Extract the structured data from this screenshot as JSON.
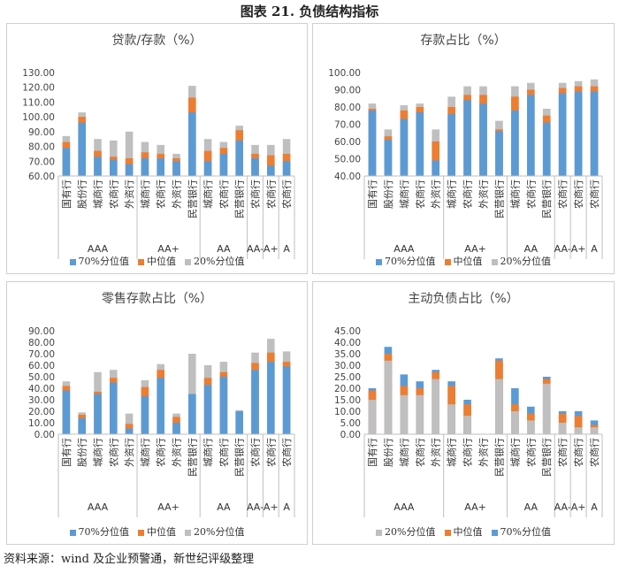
{
  "figure_title": "图表 21.   负债结构指标",
  "source": "资料来源：wind 及企业预警通，新世纪评级整理",
  "colors": {
    "p70": "#5b9bd5",
    "median": "#ed7d31",
    "p20": "#bfbfbf"
  },
  "chart_data": [
    {
      "type": "bar",
      "title": "贷款/存款（%）",
      "categories": [
        "国有行",
        "股份行",
        "城商行",
        "农商行",
        "外资行",
        "城商行",
        "农商行",
        "外资行",
        "民营银行",
        "城商行",
        "农商行",
        "民营银行",
        "农商行",
        "农商行",
        "农商行"
      ],
      "groups": [
        {
          "label": "AAA",
          "span": 5
        },
        {
          "label": "AA+",
          "span": 4
        },
        {
          "label": "AA",
          "span": 3
        },
        {
          "label": "AA-",
          "span": 1
        },
        {
          "label": "A+",
          "span": 1
        },
        {
          "label": "A",
          "span": 1
        }
      ],
      "ylim": [
        60,
        130
      ],
      "yticks": [
        "60.00",
        "70.00",
        "80.00",
        "90.00",
        "100.00",
        "110.00",
        "120.00",
        "130.00"
      ],
      "stack_order": [
        "70%分位值",
        "中位值",
        "20%分位值"
      ],
      "series": [
        {
          "name": "70%分位值",
          "values": [
            79,
            96,
            73,
            71,
            68,
            72,
            72,
            70,
            103,
            70,
            75,
            84,
            72,
            67,
            70
          ]
        },
        {
          "name": "中位值",
          "values": [
            83,
            100,
            77,
            73,
            72,
            76,
            75,
            72,
            113,
            77,
            79,
            91,
            75,
            74,
            75
          ]
        },
        {
          "name": "20%分位值",
          "values": [
            87,
            103,
            85,
            84,
            90,
            83,
            81,
            75,
            121,
            85,
            83,
            94,
            81,
            81,
            85
          ]
        }
      ],
      "legend": [
        "70%分位值",
        "中位值",
        "20%分位值"
      ]
    },
    {
      "type": "bar",
      "title": "存款占比（%）",
      "categories": [
        "国有行",
        "股份行",
        "城商行",
        "农商行",
        "外资行",
        "城商行",
        "农商行",
        "外资行",
        "民营银行",
        "城商行",
        "农商行",
        "民营银行",
        "农商行",
        "农商行",
        "农商行"
      ],
      "groups": [
        {
          "label": "AAA",
          "span": 5
        },
        {
          "label": "AA+",
          "span": 4
        },
        {
          "label": "AA",
          "span": 3
        },
        {
          "label": "AA-",
          "span": 1
        },
        {
          "label": "A+",
          "span": 1
        },
        {
          "label": "A",
          "span": 1
        }
      ],
      "ylim": [
        40,
        100
      ],
      "yticks": [
        "40.00",
        "50.00",
        "60.00",
        "70.00",
        "80.00",
        "90.00",
        "100.00"
      ],
      "stack_order": [
        "70%分位值",
        "中位值",
        "20%分位值"
      ],
      "series": [
        {
          "name": "70%分位值",
          "values": [
            78,
            61,
            73,
            77,
            49,
            76,
            84,
            82,
            66,
            78,
            87,
            71,
            88,
            89,
            89
          ]
        },
        {
          "name": "中位值",
          "values": [
            79,
            63,
            78,
            80,
            60,
            80,
            87,
            87,
            67,
            86,
            90,
            75,
            91,
            92,
            92
          ]
        },
        {
          "name": "20%分位值",
          "values": [
            82,
            67,
            81,
            82,
            67,
            86,
            92,
            92,
            72,
            92,
            94,
            79,
            94,
            95,
            96
          ]
        }
      ],
      "legend": [
        "70%分位值",
        "中位值",
        "20%分位值"
      ]
    },
    {
      "type": "bar",
      "title": "零售存款占比（%）",
      "categories": [
        "国有行",
        "股份行",
        "城商行",
        "农商行",
        "外资行",
        "城商行",
        "农商行",
        "外资行",
        "民营银行",
        "城商行",
        "农商行",
        "民营银行",
        "农商行",
        "农商行",
        "农商行"
      ],
      "groups": [
        {
          "label": "AAA",
          "span": 5
        },
        {
          "label": "AA+",
          "span": 4
        },
        {
          "label": "AA",
          "span": 3
        },
        {
          "label": "AA-",
          "span": 1
        },
        {
          "label": "A+",
          "span": 1
        },
        {
          "label": "A",
          "span": 1
        }
      ],
      "ylim": [
        0,
        90
      ],
      "yticks": [
        "0.00",
        "10.00",
        "20.00",
        "30.00",
        "40.00",
        "50.00",
        "60.00",
        "70.00",
        "80.00",
        "90.00"
      ],
      "stack_order": [
        "70%分位值",
        "中位值",
        "20%分位值"
      ],
      "series": [
        {
          "name": "70%分位值",
          "values": [
            38,
            14,
            35,
            45,
            5,
            33,
            49,
            10,
            35,
            43,
            50,
            20,
            56,
            63,
            59
          ]
        },
        {
          "name": "中位值",
          "values": [
            42,
            17,
            37,
            49,
            9,
            41,
            56,
            15,
            35,
            49,
            54,
            20,
            62,
            71,
            63
          ]
        },
        {
          "name": "20%分位值",
          "values": [
            46,
            19,
            54,
            56,
            18,
            47,
            61,
            18,
            70,
            60,
            63,
            21,
            71,
            83,
            72
          ]
        }
      ],
      "legend": [
        "70%分位值",
        "中位值",
        "20%分位值"
      ]
    },
    {
      "type": "bar",
      "title": "主动负债占比（%）",
      "categories": [
        "国有行",
        "股份行",
        "城商行",
        "农商行",
        "外资行",
        "城商行",
        "农商行",
        "外资行",
        "民营银行",
        "城商行",
        "农商行",
        "民营银行",
        "农商行",
        "农商行",
        "农商行"
      ],
      "groups": [
        {
          "label": "AAA",
          "span": 5
        },
        {
          "label": "AA+",
          "span": 4
        },
        {
          "label": "AA",
          "span": 3
        },
        {
          "label": "AA-",
          "span": 1
        },
        {
          "label": "A+",
          "span": 1
        },
        {
          "label": "A",
          "span": 1
        }
      ],
      "ylim": [
        0,
        45
      ],
      "yticks": [
        "0.00",
        "5.00",
        "10.00",
        "15.00",
        "20.00",
        "25.00",
        "30.00",
        "35.00",
        "40.00",
        "45.00"
      ],
      "stack_order": [
        "20%分位值",
        "中位值",
        "70%分位值"
      ],
      "series": [
        {
          "name": "20%分位值",
          "values": [
            15,
            32,
            17,
            17,
            24,
            13,
            8,
            0,
            24,
            10,
            6,
            22,
            5,
            3,
            3
          ]
        },
        {
          "name": "中位值",
          "values": [
            19,
            35,
            21,
            20,
            27,
            21,
            13,
            0,
            32,
            13,
            9,
            24,
            9,
            8,
            4
          ]
        },
        {
          "name": "70%分位值",
          "values": [
            20,
            38,
            26,
            23,
            28,
            23,
            15,
            0,
            33,
            20,
            12,
            25,
            10,
            10,
            6
          ]
        }
      ],
      "legend": [
        "20%分位值",
        "中位值",
        "70%分位值"
      ]
    }
  ]
}
